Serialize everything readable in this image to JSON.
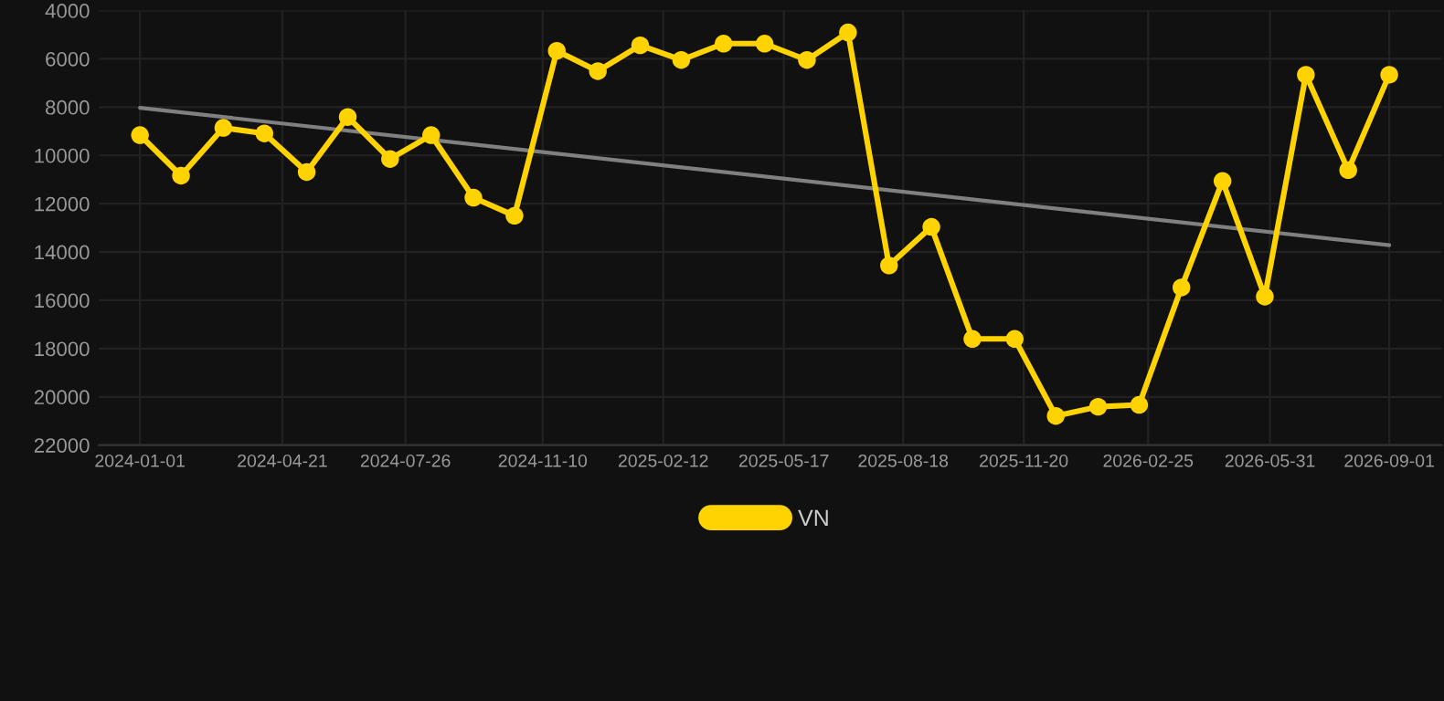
{
  "chart_data": {
    "type": "line",
    "xlim": [
      "2023-11-30",
      "2026-10-12"
    ],
    "xticks": [
      "2024-01-01",
      "2024-04-21",
      "2024-07-26",
      "2024-11-10",
      "2025-02-12",
      "2025-05-17",
      "2025-08-18",
      "2025-11-20",
      "2026-02-25",
      "2026-05-31",
      "2026-09-01"
    ],
    "ylim": [
      22000,
      4000
    ],
    "yticks": [
      4000,
      6000,
      8000,
      10000,
      12000,
      14000,
      16000,
      18000,
      20000,
      22000
    ],
    "grid": true,
    "legend": "bottom",
    "marker": "circle",
    "line_style": "solid",
    "series": [
      {
        "name": "VN",
        "color": "#ffd300",
        "x": [
          "2024-01-01",
          "2024-02-02",
          "2024-03-06",
          "2024-04-07",
          "2024-05-10",
          "2024-06-11",
          "2024-07-14",
          "2024-08-15",
          "2024-09-17",
          "2024-10-19",
          "2024-11-21",
          "2024-12-23",
          "2025-01-25",
          "2025-02-26",
          "2025-03-31",
          "2025-05-02",
          "2025-06-04",
          "2025-07-06",
          "2025-08-07",
          "2025-09-09",
          "2025-10-11",
          "2025-11-13",
          "2025-12-15",
          "2026-01-17",
          "2026-02-18",
          "2026-03-23",
          "2026-04-24",
          "2026-05-27",
          "2026-06-28",
          "2026-07-31",
          "2026-09-01"
        ],
        "values": [
          9160,
          10840,
          8860,
          9090,
          10690,
          8410,
          10150,
          9160,
          11750,
          12500,
          5670,
          6510,
          5440,
          6050,
          5370,
          5370,
          6050,
          4910,
          14560,
          12960,
          17600,
          17600,
          20790,
          20410,
          20330,
          15470,
          11060,
          15850,
          6660,
          10610,
          6660
        ]
      },
      {
        "type": "line",
        "color": "#808080",
        "marker": "none",
        "x": [
          "2024-01-01",
          "2026-09-01"
        ],
        "values": [
          8030,
          13720
        ]
      }
    ]
  }
}
